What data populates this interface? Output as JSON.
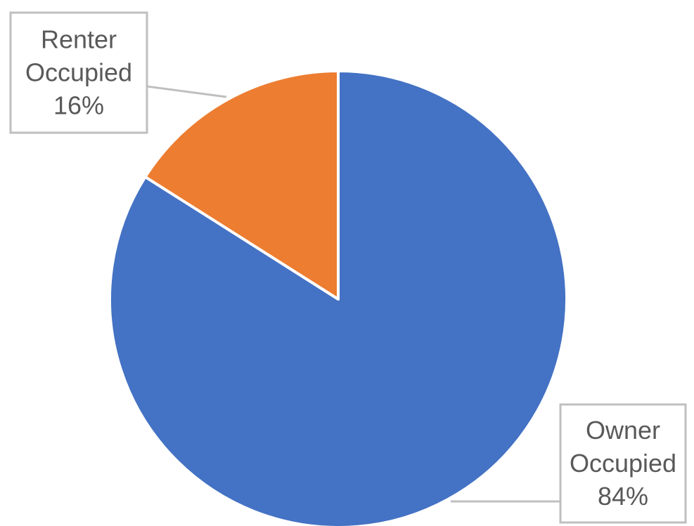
{
  "chart_data": {
    "type": "pie",
    "title": "",
    "slices": [
      {
        "label": "Owner Occupied",
        "label_lines": [
          "Owner",
          "Occupied"
        ],
        "value": 84,
        "value_label": "84%",
        "color": "#4472C4"
      },
      {
        "label": "Renter Occupied",
        "label_lines": [
          "Renter",
          "Occupied"
        ],
        "value": 16,
        "value_label": "16%",
        "color": "#ED7D31"
      }
    ],
    "start": "12 o'clock",
    "direction": "clockwise",
    "legend": "none",
    "data_labels": "callouts with leader lines"
  }
}
